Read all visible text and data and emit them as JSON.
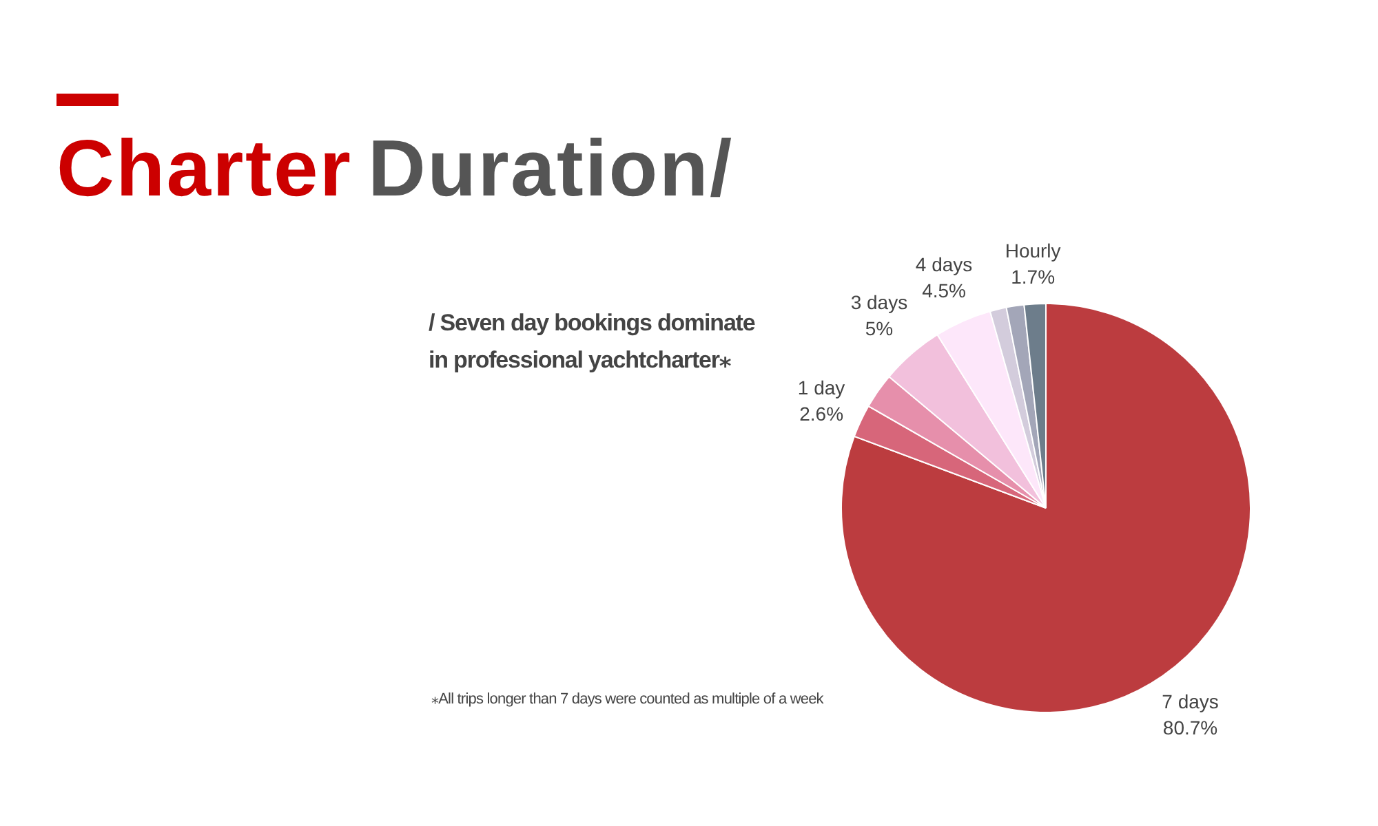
{
  "chart_data": {
    "type": "pie",
    "title": "Charter Duration/",
    "subtitle": "/ Seven day bookings dominate in professional yachtcharter⁎",
    "annotations": [
      "⁎All trips longer than 7 days were counted as multiple of a week"
    ],
    "categories": [
      "7 days",
      "1 day",
      null,
      "3 days",
      "4 days",
      null,
      null,
      "Hourly"
    ],
    "values": [
      80.7,
      2.6,
      2.8,
      5,
      4.5,
      1.3,
      1.4,
      1.7
    ],
    "value_labels": [
      "80.7%",
      "2.6%",
      null,
      "5%",
      "4.5%",
      null,
      null,
      "1.7%"
    ],
    "colors": [
      "#bc3c3f",
      "#d7667a",
      "#e68fab",
      "#f2c0dc",
      "#fde7fa",
      "#d3ccdc",
      "#a3a6b8",
      "#6d7d8b"
    ]
  }
}
